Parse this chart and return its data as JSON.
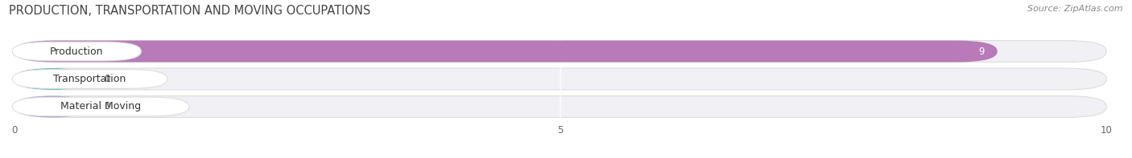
{
  "title": "PRODUCTION, TRANSPORTATION AND MOVING OCCUPATIONS",
  "source": "Source: ZipAtlas.com",
  "categories": [
    "Production",
    "Transportation",
    "Material Moving"
  ],
  "values": [
    9,
    0,
    0
  ],
  "bar_colors": [
    "#b87ab8",
    "#5bbcb8",
    "#9999cc"
  ],
  "xlim": [
    0,
    10
  ],
  "xticks": [
    0,
    5,
    10
  ],
  "bar_height": 0.62,
  "background_color": "#ffffff",
  "row_bg_color": "#f0f0f5",
  "row_border_color": "#dddddd",
  "title_fontsize": 10.5,
  "label_fontsize": 9,
  "value_fontsize": 8.5,
  "source_fontsize": 8
}
